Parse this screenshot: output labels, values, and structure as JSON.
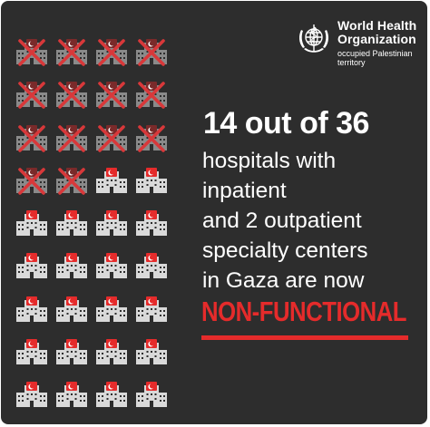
{
  "header": {
    "org_name_line1": "World Health",
    "org_name_line2": "Organization",
    "region_line1": "occupied Palestinian",
    "region_line2": "territory",
    "logo_icon": "who-emblem-icon"
  },
  "main": {
    "headline": "14 out of 36",
    "lines": [
      "hospitals with",
      "inpatient",
      "and 2 outpatient",
      "specialty centers",
      "in Gaza are now"
    ],
    "status": "NON-FUNCTIONAL"
  },
  "hospitals": {
    "total": 36,
    "non_functional": 14,
    "icon": "hospital-building-icon",
    "crossed_icon": "hospital-crossed-out-icon"
  },
  "colors": {
    "background": "#2d2d2d",
    "text": "#ffffff",
    "accent": "#e52b2b",
    "building": "#d9d9d9",
    "building_dim": "#8a8a8a",
    "cross": "#d8383a"
  }
}
